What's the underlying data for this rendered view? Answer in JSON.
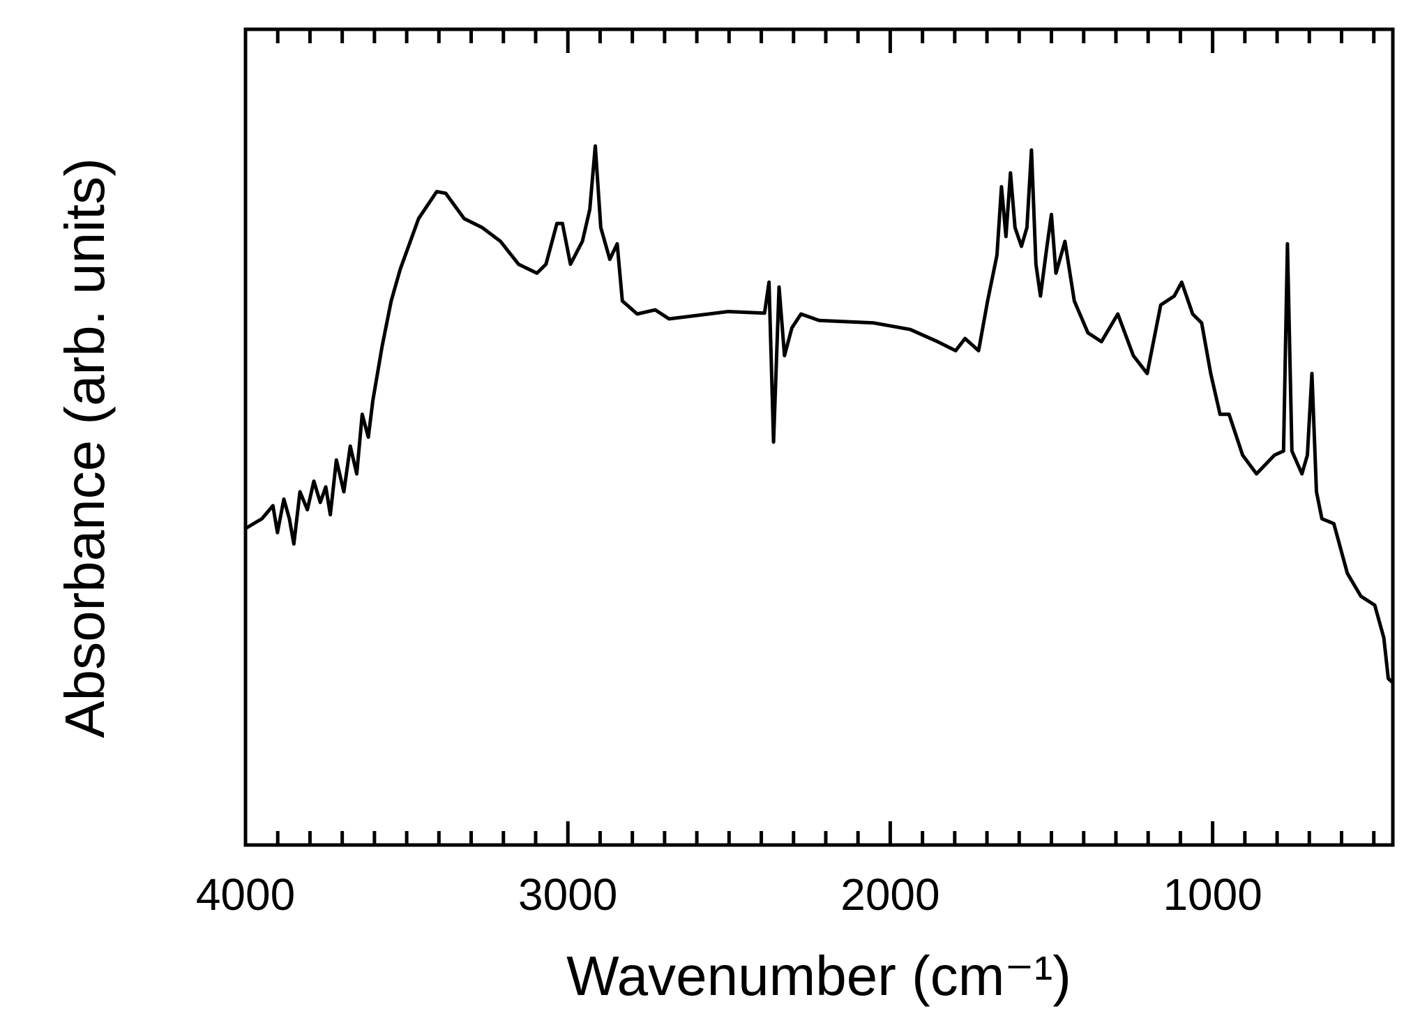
{
  "chart_data": {
    "type": "line",
    "xlabel": "Wavenumber (cm⁻¹)",
    "ylabel": "Absorbance  (arb. units)",
    "xlim": [
      4000,
      441
    ],
    "ylim": [
      0,
      1
    ],
    "xticks": [
      4000,
      3000,
      2000,
      1000
    ],
    "xminor_ticks": [
      3900,
      3800,
      3700,
      3600,
      3500,
      3400,
      3300,
      3200,
      3100,
      2900,
      2800,
      2700,
      2600,
      2500,
      2400,
      2300,
      2200,
      2100,
      1900,
      1800,
      1700,
      1600,
      1500,
      1400,
      1300,
      1200,
      1100,
      900,
      800,
      700,
      600,
      500
    ],
    "color": "#000000",
    "x": [
      4000,
      3949,
      3915,
      3901,
      3881,
      3864,
      3850,
      3831,
      3808,
      3788,
      3768,
      3751,
      3737,
      3718,
      3695,
      3675,
      3655,
      3638,
      3619,
      3605,
      3576,
      3548,
      3520,
      3463,
      3407,
      3379,
      3322,
      3266,
      3209,
      3153,
      3096,
      3068,
      3034,
      3017,
      2992,
      2955,
      2932,
      2915,
      2898,
      2870,
      2847,
      2831,
      2785,
      2729,
      2686,
      2503,
      2390,
      2376,
      2362,
      2345,
      2328,
      2305,
      2277,
      2220,
      2051,
      1938,
      1853,
      1797,
      1768,
      1726,
      1698,
      1669,
      1655,
      1641,
      1627,
      1613,
      1593,
      1576,
      1562,
      1548,
      1534,
      1514,
      1500,
      1486,
      1458,
      1429,
      1387,
      1345,
      1294,
      1246,
      1203,
      1161,
      1119,
      1096,
      1062,
      1034,
      1006,
      977,
      949,
      907,
      864,
      808,
      780,
      768,
      754,
      723,
      706,
      692,
      678,
      661,
      624,
      582,
      540,
      497,
      469,
      455,
      441
    ],
    "values": [
      0.388,
      0.4,
      0.416,
      0.383,
      0.424,
      0.4,
      0.369,
      0.433,
      0.411,
      0.446,
      0.42,
      0.439,
      0.405,
      0.472,
      0.433,
      0.489,
      0.455,
      0.528,
      0.5,
      0.545,
      0.612,
      0.667,
      0.706,
      0.768,
      0.801,
      0.799,
      0.768,
      0.757,
      0.74,
      0.712,
      0.701,
      0.712,
      0.762,
      0.762,
      0.712,
      0.74,
      0.779,
      0.857,
      0.757,
      0.718,
      0.737,
      0.667,
      0.651,
      0.656,
      0.645,
      0.654,
      0.652,
      0.69,
      0.494,
      0.684,
      0.6,
      0.634,
      0.651,
      0.643,
      0.64,
      0.632,
      0.617,
      0.606,
      0.621,
      0.606,
      0.667,
      0.723,
      0.807,
      0.746,
      0.824,
      0.757,
      0.734,
      0.757,
      0.852,
      0.712,
      0.673,
      0.734,
      0.773,
      0.701,
      0.74,
      0.667,
      0.628,
      0.617,
      0.651,
      0.6,
      0.578,
      0.662,
      0.673,
      0.69,
      0.651,
      0.64,
      0.578,
      0.528,
      0.528,
      0.478,
      0.455,
      0.478,
      0.483,
      0.737,
      0.483,
      0.455,
      0.478,
      0.578,
      0.433,
      0.4,
      0.394,
      0.333,
      0.305,
      0.294,
      0.254,
      0.204,
      0.199
    ]
  }
}
